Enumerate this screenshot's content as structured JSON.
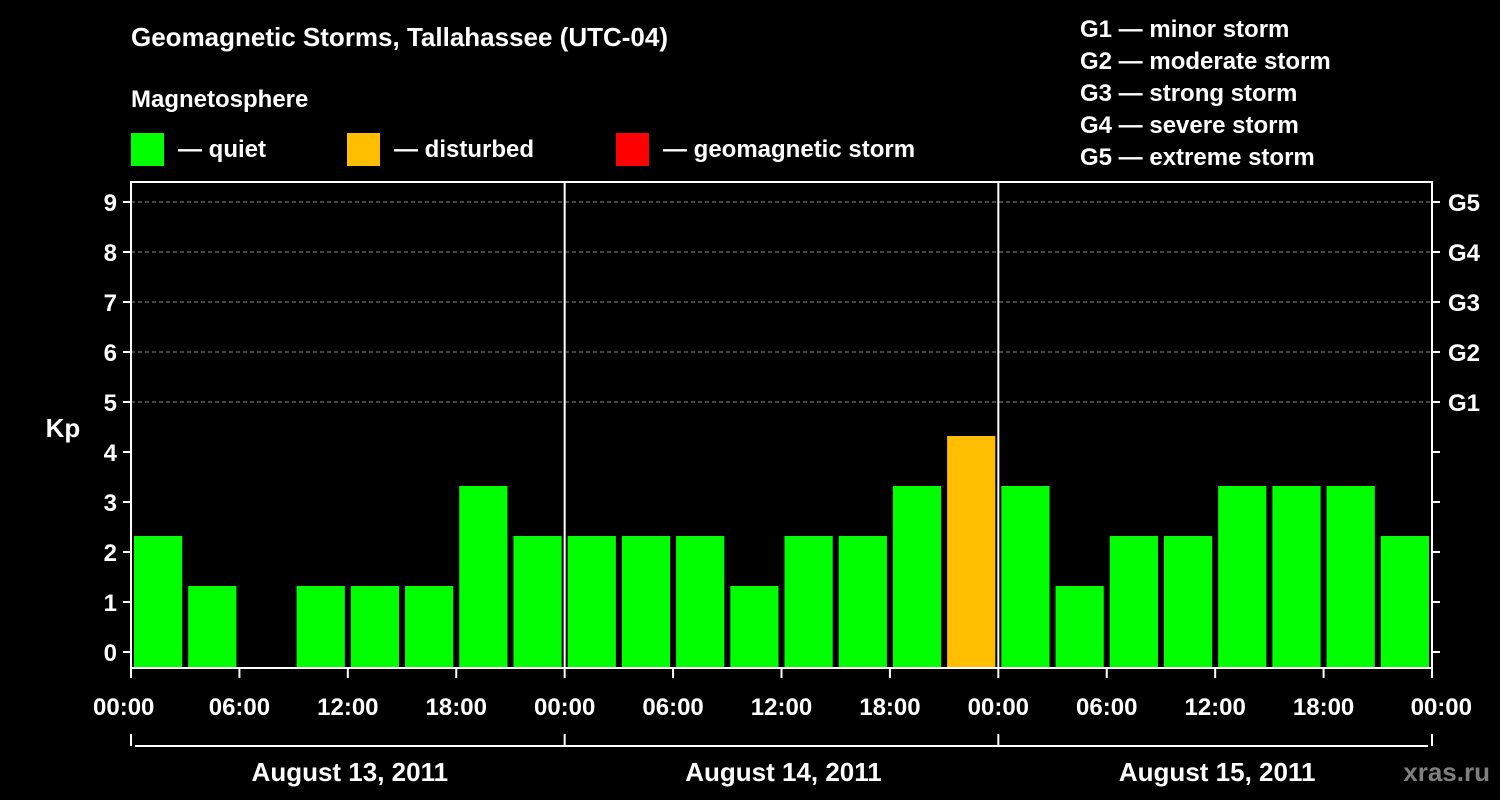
{
  "header": {
    "title": "Geomagnetic Storms, Tallahassee (UTC-04)",
    "subtitle": "Magnetosphere"
  },
  "legend": [
    {
      "label": "— quiet",
      "color": "#00ff00"
    },
    {
      "label": "— disturbed",
      "color": "#ffbf00"
    },
    {
      "label": "— geomagnetic storm",
      "color": "#ff0000"
    }
  ],
  "storm_levels": [
    "G1 — minor storm",
    "G2 — moderate storm",
    "G3 — strong storm",
    "G4 — severe storm",
    "G5 — extreme storm"
  ],
  "watermark": "xras.ru",
  "chart_data": {
    "type": "bar",
    "ylabel": "Kp",
    "ylim": [
      0,
      9
    ],
    "yticks": [
      "0",
      "1",
      "2",
      "3",
      "4",
      "5",
      "6",
      "7",
      "8",
      "9"
    ],
    "right_ticks": [
      {
        "kp": 5,
        "label": "G1"
      },
      {
        "kp": 6,
        "label": "G2"
      },
      {
        "kp": 7,
        "label": "G3"
      },
      {
        "kp": 8,
        "label": "G4"
      },
      {
        "kp": 9,
        "label": "G5"
      }
    ],
    "xticks": [
      "00:00",
      "06:00",
      "12:00",
      "18:00",
      "00:00",
      "06:00",
      "12:00",
      "18:00",
      "00:00",
      "06:00",
      "12:00",
      "18:00",
      "00:00"
    ],
    "days": [
      "August 13, 2011",
      "August 14, 2011",
      "August 15, 2011"
    ],
    "grid": "horizontal dashed",
    "bars": [
      {
        "start": "Aug 13 00:00",
        "value": 2,
        "status": "quiet"
      },
      {
        "start": "Aug 13 03:00",
        "value": 1,
        "status": "quiet"
      },
      {
        "start": "Aug 13 06:00",
        "value": 0,
        "status": "quiet"
      },
      {
        "start": "Aug 13 09:00",
        "value": 1,
        "status": "quiet"
      },
      {
        "start": "Aug 13 12:00",
        "value": 1,
        "status": "quiet"
      },
      {
        "start": "Aug 13 15:00",
        "value": 1,
        "status": "quiet"
      },
      {
        "start": "Aug 13 18:00",
        "value": 3,
        "status": "quiet"
      },
      {
        "start": "Aug 13 21:00",
        "value": 2,
        "status": "quiet"
      },
      {
        "start": "Aug 14 00:00",
        "value": 2,
        "status": "quiet"
      },
      {
        "start": "Aug 14 03:00",
        "value": 2,
        "status": "quiet"
      },
      {
        "start": "Aug 14 06:00",
        "value": 2,
        "status": "quiet"
      },
      {
        "start": "Aug 14 09:00",
        "value": 1,
        "status": "quiet"
      },
      {
        "start": "Aug 14 12:00",
        "value": 2,
        "status": "quiet"
      },
      {
        "start": "Aug 14 15:00",
        "value": 2,
        "status": "quiet"
      },
      {
        "start": "Aug 14 18:00",
        "value": 3,
        "status": "quiet"
      },
      {
        "start": "Aug 14 21:00",
        "value": 4,
        "status": "disturbed"
      },
      {
        "start": "Aug 15 00:00",
        "value": 3,
        "status": "quiet"
      },
      {
        "start": "Aug 15 03:00",
        "value": 1,
        "status": "quiet"
      },
      {
        "start": "Aug 15 06:00",
        "value": 2,
        "status": "quiet"
      },
      {
        "start": "Aug 15 09:00",
        "value": 2,
        "status": "quiet"
      },
      {
        "start": "Aug 15 12:00",
        "value": 3,
        "status": "quiet"
      },
      {
        "start": "Aug 15 15:00",
        "value": 3,
        "status": "quiet"
      },
      {
        "start": "Aug 15 18:00",
        "value": 3,
        "status": "quiet"
      },
      {
        "start": "Aug 15 21:00",
        "value": 2,
        "status": "quiet"
      }
    ]
  }
}
